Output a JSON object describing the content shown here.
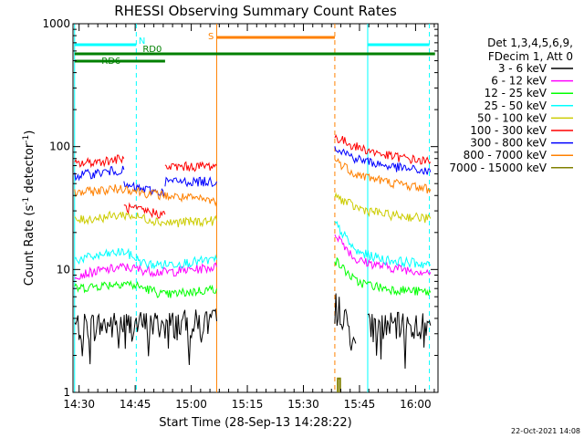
{
  "chart_data": {
    "type": "line",
    "title": "RHESSI Observing Summary Count Rates",
    "xlabel": "Start Time (28-Sep-13 14:28:22)",
    "ylabel_main": "Count Rate (s",
    "ylabel_sup1": "-1",
    "ylabel_mid": " detector",
    "ylabel_sup2": "-1",
    "ylabel_end": ")",
    "yscale": "log",
    "ylim": [
      1,
      1000
    ],
    "xlim_minutes": [
      868.37,
      966.0
    ],
    "yticks": [
      {
        "value": 1,
        "label": "1"
      },
      {
        "value": 10,
        "label": "10"
      },
      {
        "value": 100,
        "label": "100"
      },
      {
        "value": 1000,
        "label": "1000"
      }
    ],
    "xticks": [
      {
        "minute": 870,
        "label": "14:30"
      },
      {
        "minute": 885,
        "label": "14:45"
      },
      {
        "minute": 900,
        "label": "15:00"
      },
      {
        "minute": 915,
        "label": "15:15"
      },
      {
        "minute": 930,
        "label": "15:30"
      },
      {
        "minute": 945,
        "label": "15:45"
      },
      {
        "minute": 960,
        "label": "16:00"
      }
    ],
    "legend_header": [
      "Det 1,3,4,5,6,9,",
      "FDecim 1, Att 0"
    ],
    "series": [
      {
        "name": "3 - 6 keV",
        "color": "#000000",
        "segments": [
          [
            [
              868.8,
              3.5
            ],
            [
              885.0,
              3.6
            ],
            [
              893.0,
              3.6
            ],
            [
              906.8,
              3.8
            ]
          ],
          [
            [
              938.4,
              6.0
            ],
            [
              941.0,
              4.0
            ],
            [
              944.0,
              2.5
            ]
          ],
          [
            [
              947.2,
              3.5
            ],
            [
              964.0,
              3.5
            ]
          ]
        ]
      },
      {
        "name": "6 - 12 keV",
        "color": "#ff00ff",
        "segments": [
          [
            [
              868.8,
              9.0
            ],
            [
              882.0,
              10.5
            ],
            [
              888.0,
              9.8
            ],
            [
              893.0,
              9.5
            ],
            [
              906.8,
              10.5
            ]
          ],
          [
            [
              938.4,
              20.0
            ],
            [
              944.0,
              12.0
            ],
            [
              952.0,
              10.5
            ],
            [
              964.0,
              9.5
            ]
          ]
        ]
      },
      {
        "name": "12 - 25 keV",
        "color": "#00ff00",
        "segments": [
          [
            [
              868.8,
              7.0
            ],
            [
              882.0,
              7.8
            ],
            [
              888.0,
              7.0
            ],
            [
              893.0,
              6.2
            ],
            [
              906.8,
              7.0
            ]
          ],
          [
            [
              938.4,
              12.0
            ],
            [
              944.0,
              8.0
            ],
            [
              952.0,
              7.0
            ],
            [
              964.0,
              6.5
            ]
          ]
        ]
      },
      {
        "name": "25 - 50 keV",
        "color": "#00ffff",
        "segments": [
          [
            [
              868.8,
              12.0
            ],
            [
              882.0,
              14.0
            ],
            [
              888.0,
              11.0
            ],
            [
              893.0,
              11.0
            ],
            [
              906.8,
              12.0
            ]
          ],
          [
            [
              938.4,
              24.0
            ],
            [
              944.0,
              14.0
            ],
            [
              952.0,
              12.0
            ],
            [
              964.0,
              11.0
            ]
          ]
        ]
      },
      {
        "name": "50 - 100 keV",
        "color": "#cccc00",
        "segments": [
          [
            [
              868.8,
              25.0
            ],
            [
              882.0,
              28.0
            ],
            [
              888.0,
              26.0
            ],
            [
              893.0,
              24.0
            ],
            [
              906.8,
              25.0
            ]
          ],
          [
            [
              938.4,
              40.0
            ],
            [
              944.0,
              32.0
            ],
            [
              952.0,
              28.0
            ],
            [
              964.0,
              26.0
            ]
          ]
        ]
      },
      {
        "name": "100 - 300 keV",
        "color": "#ff0000",
        "segments": [
          [
            [
              868.8,
              72.0
            ],
            [
              882.0,
              80.0
            ]
          ],
          [
            [
              882.0,
              32.0
            ],
            [
              893.0,
              28.0
            ]
          ],
          [
            [
              893.0,
              68.0
            ],
            [
              906.8,
              70.0
            ]
          ],
          [
            [
              938.4,
              120.0
            ],
            [
              944.0,
              100.0
            ],
            [
              952.0,
              85.0
            ],
            [
              964.0,
              75.0
            ]
          ]
        ]
      },
      {
        "name": "300 - 800 keV",
        "color": "#0000ff",
        "segments": [
          [
            [
              868.8,
              58.0
            ],
            [
              882.0,
              65.0
            ]
          ],
          [
            [
              882.0,
              48.0
            ],
            [
              893.0,
              42.0
            ]
          ],
          [
            [
              893.0,
              52.0
            ],
            [
              906.8,
              52.0
            ]
          ],
          [
            [
              938.4,
              100.0
            ],
            [
              944.0,
              80.0
            ],
            [
              952.0,
              70.0
            ],
            [
              964.0,
              62.0
            ]
          ]
        ]
      },
      {
        "name": "800 - 7000 keV",
        "color": "#ff8000",
        "segments": [
          [
            [
              868.8,
              42.0
            ],
            [
              882.0,
              46.0
            ],
            [
              888.0,
              42.0
            ],
            [
              893.0,
              40.0
            ],
            [
              906.8,
              36.0
            ]
          ],
          [
            [
              938.4,
              78.0
            ],
            [
              944.0,
              60.0
            ],
            [
              952.0,
              52.0
            ],
            [
              964.0,
              45.0
            ]
          ]
        ]
      },
      {
        "name": "7000 - 15000 keV",
        "color": "#808000",
        "segments": [
          [
            [
              939.2,
              1.0
            ],
            [
              939.2,
              1.3
            ],
            [
              939.8,
              1.3
            ],
            [
              939.8,
              1.0
            ]
          ]
        ]
      }
    ],
    "vertical_lines": [
      {
        "minute": 868.8,
        "color": "#00ffff",
        "style": "solid"
      },
      {
        "minute": 885.3,
        "color": "#00ffff",
        "style": "dashed"
      },
      {
        "minute": 906.8,
        "color": "#ff8000",
        "style": "solid"
      },
      {
        "minute": 938.4,
        "color": "#ff8000",
        "style": "dashed"
      },
      {
        "minute": 947.2,
        "color": "#00ffff",
        "style": "solid"
      },
      {
        "minute": 963.7,
        "color": "#00ffff",
        "style": "dashed"
      }
    ],
    "flags": [
      {
        "label": "N",
        "color": "#00ffff",
        "intervals": [
          [
            868.8,
            885.3
          ],
          [
            947.2,
            963.7
          ]
        ],
        "label_minute": 885.9,
        "level": 0
      },
      {
        "label": "S",
        "color": "#ff8000",
        "intervals": [
          [
            906.8,
            938.4
          ]
        ],
        "label_minute": 904.5,
        "level": -1
      },
      {
        "label": "RD0",
        "color": "#008000",
        "intervals": [
          [
            868.8,
            965.2
          ]
        ],
        "label_minute": 887.0,
        "level": 1
      },
      {
        "label": "RD6",
        "color": "#008000",
        "intervals": [
          [
            868.8,
            893.0
          ]
        ],
        "label_minute": 876.0,
        "level": 2
      }
    ]
  },
  "footer": {
    "timestamp": "22-Oct-2021 14:08"
  }
}
